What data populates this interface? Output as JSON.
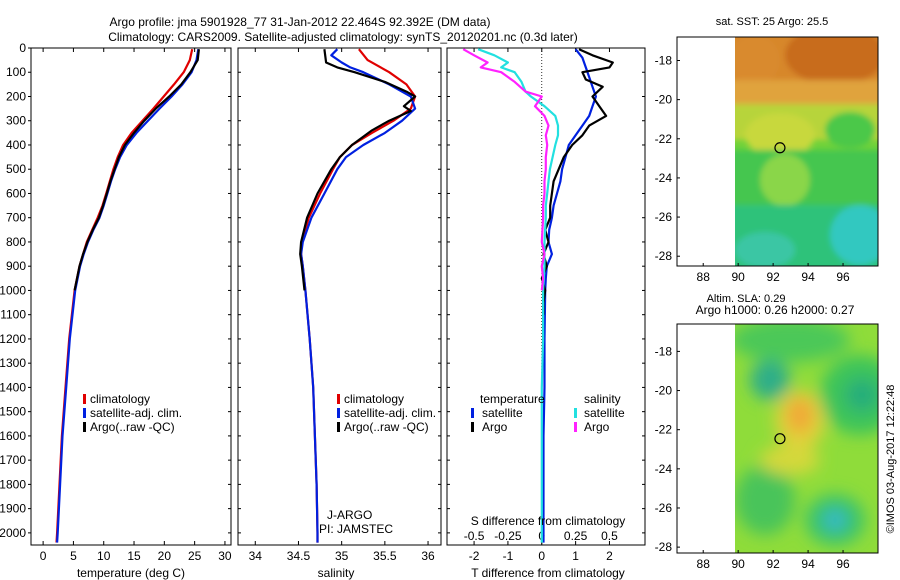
{
  "header": {
    "line1": "Argo profile: jma 5901928_77 31-Jan-2012 22.464S 92.392E (DM data)",
    "line2": "Climatology: CARS2009. Satellite-adjusted climatology: synTS_20120201.nc (0.3d later)"
  },
  "credit": "©IMOS 03-Aug-2017 12:22:48",
  "colors": {
    "climatology": "#e00000",
    "satellite": "#0020e0",
    "argo": "#000000",
    "argo_salinity_diff": "#ff22ff",
    "satellite_salinity_diff": "#22e0e0"
  },
  "depth_axis": {
    "min": 0,
    "max": 2050,
    "ticks": [
      "0",
      "100",
      "200",
      "300",
      "400",
      "500",
      "600",
      "700",
      "800",
      "900",
      "1000",
      "1100",
      "1200",
      "1300",
      "1400",
      "1500",
      "1600",
      "1700",
      "1800",
      "1900",
      "2000"
    ]
  },
  "chart_data": [
    {
      "type": "line",
      "id": "temperature",
      "xlabel": "temperature (deg C)",
      "xlim": [
        -2,
        31
      ],
      "ylim": [
        0,
        2050
      ],
      "ylabel_ticks_reversed": true,
      "xticks": [
        "0",
        "5",
        "10",
        "15",
        "20",
        "25",
        "30"
      ],
      "xtick_values": [
        0,
        5,
        10,
        15,
        20,
        25,
        30
      ],
      "legend": [
        "climatology",
        "satellite-adj. clim.",
        "Argo(..raw -QC)"
      ],
      "series": [
        {
          "name": "climatology",
          "color": "#e00000",
          "depth": [
            5,
            50,
            100,
            150,
            200,
            250,
            300,
            350,
            400,
            450,
            500,
            550,
            600,
            650,
            700,
            750,
            800,
            850,
            900,
            1000,
            1200,
            1400,
            1600,
            1800,
            2000,
            2040
          ],
          "values": [
            24.6,
            24.2,
            23.2,
            21.6,
            19.9,
            18.2,
            16.4,
            14.6,
            13.2,
            12.3,
            11.6,
            11.0,
            10.4,
            9.8,
            9.0,
            8.1,
            7.2,
            6.6,
            6.0,
            5.2,
            4.3,
            3.7,
            3.1,
            2.7,
            2.3,
            2.2
          ]
        },
        {
          "name": "satellite-adj. clim.",
          "color": "#0020e0",
          "depth": [
            5,
            50,
            100,
            150,
            200,
            250,
            300,
            350,
            400,
            450,
            500,
            550,
            600,
            650,
            700,
            750,
            800,
            850,
            900,
            1000,
            1200,
            1400,
            1600,
            1800,
            2000,
            2040
          ],
          "values": [
            25.6,
            25.3,
            24.5,
            23.0,
            21.2,
            19.2,
            17.3,
            15.4,
            13.8,
            12.7,
            11.9,
            11.2,
            10.6,
            10.0,
            9.3,
            8.3,
            7.4,
            6.7,
            6.1,
            5.3,
            4.4,
            3.8,
            3.2,
            2.8,
            2.4,
            2.3
          ]
        },
        {
          "name": "Argo(..raw -QC)",
          "color": "#000000",
          "depth": [
            5,
            50,
            100,
            150,
            200,
            250,
            300,
            350,
            400,
            450,
            500,
            550,
            600,
            650,
            700,
            750,
            800,
            850,
            900,
            1000
          ],
          "values": [
            25.7,
            25.5,
            24.3,
            22.8,
            20.8,
            18.6,
            16.7,
            15.0,
            13.5,
            12.5,
            11.8,
            11.1,
            10.5,
            9.9,
            9.2,
            8.2,
            7.3,
            6.6,
            6.0,
            5.2
          ]
        }
      ]
    },
    {
      "type": "line",
      "id": "salinity",
      "xlabel": "salinity",
      "xlim": [
        33.8,
        36.15
      ],
      "ylim": [
        0,
        2050
      ],
      "xticks": [
        "34",
        "34.5",
        "35",
        "35.5",
        "36"
      ],
      "xtick_values": [
        34,
        34.5,
        35,
        35.5,
        36
      ],
      "legend": [
        "climatology",
        "satellite-adj. clim.",
        "Argo(..raw -QC)"
      ],
      "annotations": [
        "J-ARGO",
        "PI: JAMSTEC"
      ],
      "series": [
        {
          "name": "climatology",
          "color": "#e00000",
          "depth": [
            5,
            50,
            100,
            150,
            200,
            250,
            300,
            350,
            400,
            450,
            500,
            600,
            700,
            800,
            850,
            900,
            1000,
            1200,
            1400,
            1600,
            1800,
            2000,
            2040
          ],
          "values": [
            35.2,
            35.3,
            35.55,
            35.75,
            35.85,
            35.8,
            35.6,
            35.35,
            35.12,
            34.98,
            34.9,
            34.75,
            34.62,
            34.54,
            34.53,
            34.55,
            34.58,
            34.63,
            34.67,
            34.69,
            34.71,
            34.72,
            34.72
          ]
        },
        {
          "name": "satellite-adj. clim.",
          "color": "#0020e0",
          "depth": [
            5,
            30,
            60,
            80,
            100,
            150,
            200,
            250,
            300,
            350,
            400,
            450,
            500,
            600,
            700,
            800,
            850,
            900,
            1000,
            1200,
            1400,
            1600,
            1800,
            2000,
            2040
          ],
          "values": [
            34.95,
            34.88,
            35.0,
            35.1,
            35.25,
            35.55,
            35.8,
            35.85,
            35.7,
            35.5,
            35.25,
            35.05,
            34.95,
            34.8,
            34.65,
            34.55,
            34.53,
            34.55,
            34.58,
            34.63,
            34.67,
            34.69,
            34.71,
            34.72,
            34.72
          ]
        },
        {
          "name": "Argo(..raw -QC)",
          "color": "#000000",
          "depth": [
            5,
            60,
            80,
            100,
            140,
            180,
            200,
            240,
            260,
            300,
            340,
            400,
            450,
            500,
            600,
            700,
            800,
            850,
            900,
            1000
          ],
          "values": [
            34.8,
            34.82,
            34.95,
            35.15,
            35.5,
            35.75,
            35.85,
            35.72,
            35.8,
            35.55,
            35.35,
            35.12,
            34.98,
            34.88,
            34.72,
            34.6,
            34.53,
            34.52,
            34.54,
            34.57
          ]
        }
      ]
    },
    {
      "type": "line",
      "id": "difference",
      "xlabel": "T difference from climatology",
      "xlabel_top": "S difference from climatology",
      "xlim": [
        -2.8,
        3.05
      ],
      "ylim": [
        0,
        2050
      ],
      "xticks_T": [
        "-2",
        "-1",
        "0",
        "1",
        "2"
      ],
      "xtick_values_T": [
        -2,
        -1,
        0,
        1,
        2
      ],
      "xticks_S": [
        "-0.5",
        "-0.25",
        "0",
        "0.25",
        "0.5"
      ],
      "xtick_values_S": [
        -0.5,
        -0.25,
        0,
        0.25,
        0.5
      ],
      "legend_temperature_title": "temperature",
      "legend_salinity_title": "salinity",
      "legend_temperature": [
        "satellite",
        "Argo"
      ],
      "legend_salinity": [
        "satellite",
        "Argo"
      ],
      "series": [
        {
          "name": "T satellite",
          "color": "#0020e0",
          "depth": [
            5,
            40,
            80,
            120,
            160,
            200,
            240,
            280,
            320,
            360,
            400,
            450,
            500,
            550,
            600,
            650,
            700,
            750,
            800,
            850,
            900,
            950,
            1000,
            1200,
            1400,
            1600,
            1800,
            2000,
            2040
          ],
          "values": [
            1.0,
            1.2,
            1.3,
            1.4,
            1.5,
            1.6,
            1.5,
            1.4,
            1.2,
            1.0,
            0.8,
            0.7,
            0.6,
            0.55,
            0.45,
            0.35,
            0.3,
            0.22,
            0.2,
            0.3,
            0.15,
            0.12,
            0.1,
            0.08,
            0.08,
            0.05,
            0.05,
            0.05,
            0.05
          ]
        },
        {
          "name": "T Argo",
          "color": "#000000",
          "depth": [
            5,
            30,
            60,
            80,
            100,
            130,
            160,
            200,
            240,
            280,
            320,
            360,
            400,
            450,
            500,
            550,
            600,
            650,
            700,
            750,
            800,
            850,
            900,
            950,
            1000,
            1050,
            1100
          ],
          "values": [
            1.1,
            1.5,
            2.1,
            2.0,
            1.2,
            1.3,
            1.8,
            1.5,
            1.7,
            1.9,
            1.4,
            1.2,
            0.9,
            0.65,
            0.5,
            0.35,
            0.3,
            0.25,
            0.25,
            0.1,
            0.2,
            0.05,
            0.15,
            0.0,
            0.1,
            0.05,
            0.05
          ]
        },
        {
          "name": "S satellite",
          "color": "#22e0e0",
          "depth": [
            5,
            30,
            60,
            80,
            100,
            140,
            180,
            200,
            240,
            280,
            320,
            360,
            400,
            450,
            500,
            550,
            600,
            650,
            700,
            800,
            900,
            1000,
            1200,
            1400,
            1600,
            1800,
            2000,
            2040
          ],
          "values": [
            -0.47,
            -0.35,
            -0.25,
            -0.3,
            -0.2,
            -0.15,
            -0.12,
            -0.08,
            0.02,
            0.1,
            0.12,
            0.12,
            0.1,
            0.08,
            0.06,
            0.05,
            0.04,
            0.03,
            0.03,
            0.02,
            0.02,
            0.01,
            0.01,
            0.0,
            0.0,
            0.0,
            0.0,
            0.0
          ]
        },
        {
          "name": "S Argo",
          "color": "#ff22ff",
          "depth": [
            5,
            30,
            60,
            80,
            100,
            140,
            180,
            200,
            240,
            280,
            320,
            360,
            400,
            450,
            500,
            550,
            600,
            650,
            700,
            800,
            850,
            900,
            950,
            1000
          ],
          "values": [
            -0.58,
            -0.5,
            -0.4,
            -0.45,
            -0.3,
            -0.2,
            -0.12,
            0.0,
            -0.05,
            0.02,
            0.05,
            0.03,
            0.04,
            0.03,
            0.03,
            0.02,
            0.02,
            0.01,
            0.01,
            0.0,
            0.02,
            0.0,
            0.01,
            0.0
          ]
        }
      ]
    },
    {
      "type": "heatmap",
      "id": "sst_map",
      "title": "sat. SST: 25 Argo: 25.5",
      "xlim": [
        86.5,
        98
      ],
      "ylim": [
        -28.5,
        -16.8
      ],
      "xticks": [
        "88",
        "90",
        "92",
        "94",
        "96"
      ],
      "xtick_values": [
        88,
        90,
        92,
        94,
        96
      ],
      "yticks": [
        "-18",
        "-20",
        "-22",
        "-24",
        "-26",
        "-28"
      ],
      "ytick_values": [
        -18,
        -20,
        -22,
        -24,
        -26,
        -28
      ],
      "data_start_lon": 90,
      "marker": {
        "lon": 92.39,
        "lat": -22.46
      }
    },
    {
      "type": "heatmap",
      "id": "sla_map",
      "title": "Altim. SLA: 0.29",
      "subtitle": "Argo h1000: 0.26 h2000: 0.27",
      "xlim": [
        86.5,
        98
      ],
      "ylim": [
        -28.3,
        -16.6
      ],
      "xticks": [
        "88",
        "90",
        "92",
        "94",
        "96"
      ],
      "xtick_values": [
        88,
        90,
        92,
        94,
        96
      ],
      "yticks": [
        "-18",
        "-20",
        "-22",
        "-24",
        "-26",
        "-28"
      ],
      "ytick_values": [
        -18,
        -20,
        -22,
        -24,
        -26,
        -28
      ],
      "data_start_lon": 90,
      "marker": {
        "lon": 92.39,
        "lat": -22.46
      }
    }
  ]
}
